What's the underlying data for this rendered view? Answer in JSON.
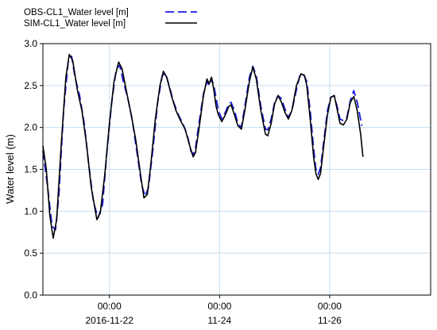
{
  "chart_data": {
    "type": "line",
    "title": "",
    "xlabel": "",
    "ylabel": "Water level (m)",
    "ylim": [
      0.0,
      3.0
    ],
    "yticks": [
      0.0,
      0.5,
      1.0,
      1.5,
      2.0,
      2.5,
      3.0
    ],
    "ytick_labels": [
      "0.0",
      "0.5",
      "1.0",
      "1.5",
      "2.0",
      "2.5",
      "3.0"
    ],
    "xlim": [
      "2016-11-20T19:00",
      "2016-11-27T20:00"
    ],
    "xticks": [
      {
        "x": "2016-11-22T00:00",
        "time": "00:00",
        "date": "2016-11-22"
      },
      {
        "x": "2016-11-24T00:00",
        "time": "00:00",
        "date": "11-24"
      },
      {
        "x": "2016-11-26T00:00",
        "time": "00:00",
        "date": "11-26"
      }
    ],
    "grid": true,
    "legend_position": "top-left",
    "series": [
      {
        "name": "OBS-CL1_Water level [m]",
        "color": "#1a1adb",
        "style": "dashed",
        "points": [
          [
            "2016-11-20T19:00",
            1.72
          ],
          [
            "2016-11-20T21:00",
            1.3
          ],
          [
            "2016-11-20T23:00",
            0.82
          ],
          [
            "2016-11-21T00:30",
            0.78
          ],
          [
            "2016-11-21T02:00",
            1.2
          ],
          [
            "2016-11-21T04:00",
            2.2
          ],
          [
            "2016-11-21T06:00",
            2.78
          ],
          [
            "2016-11-21T07:30",
            2.85
          ],
          [
            "2016-11-21T09:00",
            2.6
          ],
          [
            "2016-11-21T11:00",
            2.38
          ],
          [
            "2016-11-21T13:00",
            2.05
          ],
          [
            "2016-11-21T15:00",
            1.55
          ],
          [
            "2016-11-21T17:00",
            1.12
          ],
          [
            "2016-11-21T19:00",
            0.92
          ],
          [
            "2016-11-21T21:00",
            1.08
          ],
          [
            "2016-11-21T23:00",
            1.75
          ],
          [
            "2016-11-22T01:00",
            2.3
          ],
          [
            "2016-11-22T03:00",
            2.7
          ],
          [
            "2016-11-22T04:30",
            2.74
          ],
          [
            "2016-11-22T06:00",
            2.55
          ],
          [
            "2016-11-22T08:00",
            2.35
          ],
          [
            "2016-11-22T10:00",
            2.08
          ],
          [
            "2016-11-22T12:00",
            1.7
          ],
          [
            "2016-11-22T14:00",
            1.32
          ],
          [
            "2016-11-22T15:30",
            1.18
          ],
          [
            "2016-11-22T17:00",
            1.28
          ],
          [
            "2016-11-22T19:00",
            1.75
          ],
          [
            "2016-11-22T21:00",
            2.3
          ],
          [
            "2016-11-22T23:00",
            2.62
          ],
          [
            "2016-11-23T00:30",
            2.64
          ],
          [
            "2016-11-23T02:00",
            2.5
          ],
          [
            "2016-11-23T04:00",
            2.3
          ],
          [
            "2016-11-23T06:00",
            2.15
          ],
          [
            "2016-11-23T08:00",
            2.05
          ],
          [
            "2016-11-23T10:00",
            1.9
          ],
          [
            "2016-11-23T11:30",
            1.72
          ],
          [
            "2016-11-23T12:30",
            1.68
          ],
          [
            "2016-11-23T13:30",
            1.75
          ],
          [
            "2016-11-23T15:00",
            2.05
          ],
          [
            "2016-11-23T17:00",
            2.4
          ],
          [
            "2016-11-23T18:30",
            2.55
          ],
          [
            "2016-11-23T19:30",
            2.5
          ],
          [
            "2016-11-23T20:30",
            2.58
          ],
          [
            "2016-11-23T21:30",
            2.5
          ],
          [
            "2016-11-23T22:30",
            2.35
          ],
          [
            "2016-11-23T23:30",
            2.2
          ],
          [
            "2016-11-24T01:00",
            2.1
          ],
          [
            "2016-11-24T02:30",
            2.18
          ],
          [
            "2016-11-24T04:00",
            2.28
          ],
          [
            "2016-11-24T05:00",
            2.3
          ],
          [
            "2016-11-24T06:30",
            2.2
          ],
          [
            "2016-11-24T08:00",
            2.05
          ],
          [
            "2016-11-24T09:30",
            2.0
          ],
          [
            "2016-11-24T11:00",
            2.25
          ],
          [
            "2016-11-24T13:00",
            2.6
          ],
          [
            "2016-11-24T14:30",
            2.73
          ],
          [
            "2016-11-24T16:00",
            2.62
          ],
          [
            "2016-11-24T18:00",
            2.25
          ],
          [
            "2016-11-24T20:00",
            1.98
          ],
          [
            "2016-11-24T21:00",
            1.97
          ],
          [
            "2016-11-24T22:30",
            2.1
          ],
          [
            "2016-11-25T00:00",
            2.3
          ],
          [
            "2016-11-25T01:30",
            2.38
          ],
          [
            "2016-11-25T03:00",
            2.34
          ],
          [
            "2016-11-25T04:30",
            2.22
          ],
          [
            "2016-11-25T06:00",
            2.12
          ],
          [
            "2016-11-25T07:30",
            2.2
          ],
          [
            "2016-11-25T09:30",
            2.45
          ],
          [
            "2016-11-25T11:00",
            2.62
          ],
          [
            "2016-11-25T12:30",
            2.64
          ],
          [
            "2016-11-25T14:00",
            2.55
          ],
          [
            "2016-11-25T15:30",
            2.2
          ],
          [
            "2016-11-25T17:00",
            1.75
          ],
          [
            "2016-11-25T18:00",
            1.5
          ],
          [
            "2016-11-25T19:00",
            1.44
          ],
          [
            "2016-11-25T20:00",
            1.52
          ],
          [
            "2016-11-25T21:30",
            1.85
          ],
          [
            "2016-11-25T23:00",
            2.2
          ],
          [
            "2016-11-26T00:30",
            2.36
          ],
          [
            "2016-11-26T02:00",
            2.38
          ],
          [
            "2016-11-26T03:30",
            2.22
          ],
          [
            "2016-11-26T04:30",
            2.1
          ],
          [
            "2016-11-26T06:00",
            2.08
          ],
          [
            "2016-11-26T07:30",
            2.12
          ],
          [
            "2016-11-26T09:00",
            2.32
          ],
          [
            "2016-11-26T10:30",
            2.44
          ],
          [
            "2016-11-26T12:00",
            2.3
          ],
          [
            "2016-11-26T14:00",
            2.02
          ]
        ]
      },
      {
        "name": "SIM-CL1_Water level  [m]",
        "color": "#000000",
        "style": "solid",
        "points": [
          [
            "2016-11-20T19:00",
            1.78
          ],
          [
            "2016-11-20T20:30",
            1.5
          ],
          [
            "2016-11-20T22:00",
            0.95
          ],
          [
            "2016-11-20T23:30",
            0.68
          ],
          [
            "2016-11-21T01:00",
            0.9
          ],
          [
            "2016-11-21T03:00",
            1.8
          ],
          [
            "2016-11-21T05:00",
            2.6
          ],
          [
            "2016-11-21T06:30",
            2.87
          ],
          [
            "2016-11-21T08:00",
            2.8
          ],
          [
            "2016-11-21T10:00",
            2.45
          ],
          [
            "2016-11-21T12:00",
            2.2
          ],
          [
            "2016-11-21T14:00",
            1.8
          ],
          [
            "2016-11-21T16:00",
            1.3
          ],
          [
            "2016-11-21T18:30",
            0.9
          ],
          [
            "2016-11-21T20:00",
            0.98
          ],
          [
            "2016-11-21T22:00",
            1.45
          ],
          [
            "2016-11-22T00:00",
            2.05
          ],
          [
            "2016-11-22T02:00",
            2.55
          ],
          [
            "2016-11-22T04:00",
            2.78
          ],
          [
            "2016-11-22T05:30",
            2.7
          ],
          [
            "2016-11-22T07:30",
            2.42
          ],
          [
            "2016-11-22T09:30",
            2.15
          ],
          [
            "2016-11-22T11:30",
            1.85
          ],
          [
            "2016-11-22T13:30",
            1.45
          ],
          [
            "2016-11-22T15:00",
            1.16
          ],
          [
            "2016-11-22T16:30",
            1.2
          ],
          [
            "2016-11-22T18:00",
            1.55
          ],
          [
            "2016-11-22T20:00",
            2.1
          ],
          [
            "2016-11-22T22:00",
            2.5
          ],
          [
            "2016-11-22T23:30",
            2.67
          ],
          [
            "2016-11-23T01:00",
            2.6
          ],
          [
            "2016-11-23T03:00",
            2.38
          ],
          [
            "2016-11-23T05:00",
            2.2
          ],
          [
            "2016-11-23T07:00",
            2.08
          ],
          [
            "2016-11-23T09:00",
            1.98
          ],
          [
            "2016-11-23T11:00",
            1.78
          ],
          [
            "2016-11-23T12:30",
            1.65
          ],
          [
            "2016-11-23T13:30",
            1.7
          ],
          [
            "2016-11-23T15:00",
            1.98
          ],
          [
            "2016-11-23T17:00",
            2.38
          ],
          [
            "2016-11-23T18:30",
            2.58
          ],
          [
            "2016-11-23T19:30",
            2.52
          ],
          [
            "2016-11-23T20:30",
            2.6
          ],
          [
            "2016-11-23T21:30",
            2.45
          ],
          [
            "2016-11-23T22:30",
            2.25
          ],
          [
            "2016-11-23T23:30",
            2.15
          ],
          [
            "2016-11-24T01:00",
            2.07
          ],
          [
            "2016-11-24T02:30",
            2.15
          ],
          [
            "2016-11-24T04:00",
            2.25
          ],
          [
            "2016-11-24T05:00",
            2.27
          ],
          [
            "2016-11-24T06:30",
            2.15
          ],
          [
            "2016-11-24T08:00",
            2.02
          ],
          [
            "2016-11-24T09:30",
            1.98
          ],
          [
            "2016-11-24T11:00",
            2.2
          ],
          [
            "2016-11-24T13:00",
            2.55
          ],
          [
            "2016-11-24T14:30",
            2.72
          ],
          [
            "2016-11-24T16:00",
            2.58
          ],
          [
            "2016-11-24T18:00",
            2.2
          ],
          [
            "2016-11-24T20:00",
            1.92
          ],
          [
            "2016-11-24T21:00",
            1.9
          ],
          [
            "2016-11-24T22:30",
            2.05
          ],
          [
            "2016-11-25T00:00",
            2.28
          ],
          [
            "2016-11-25T01:30",
            2.38
          ],
          [
            "2016-11-25T03:00",
            2.3
          ],
          [
            "2016-11-25T04:30",
            2.18
          ],
          [
            "2016-11-25T06:00",
            2.1
          ],
          [
            "2016-11-25T07:30",
            2.2
          ],
          [
            "2016-11-25T09:30",
            2.5
          ],
          [
            "2016-11-25T11:30",
            2.64
          ],
          [
            "2016-11-25T13:00",
            2.62
          ],
          [
            "2016-11-25T14:00",
            2.5
          ],
          [
            "2016-11-25T15:30",
            2.1
          ],
          [
            "2016-11-25T17:00",
            1.65
          ],
          [
            "2016-11-25T18:00",
            1.45
          ],
          [
            "2016-11-25T19:00",
            1.38
          ],
          [
            "2016-11-25T20:00",
            1.45
          ],
          [
            "2016-11-25T21:30",
            1.8
          ],
          [
            "2016-11-25T23:00",
            2.15
          ],
          [
            "2016-11-26T00:30",
            2.36
          ],
          [
            "2016-11-26T02:00",
            2.38
          ],
          [
            "2016-11-26T03:30",
            2.18
          ],
          [
            "2016-11-26T04:30",
            2.05
          ],
          [
            "2016-11-26T06:00",
            2.03
          ],
          [
            "2016-11-26T07:30",
            2.1
          ],
          [
            "2016-11-26T09:00",
            2.3
          ],
          [
            "2016-11-26T10:30",
            2.37
          ],
          [
            "2016-11-26T12:00",
            2.2
          ],
          [
            "2016-11-26T13:30",
            1.92
          ],
          [
            "2016-11-26T14:30",
            1.65
          ]
        ]
      }
    ]
  }
}
